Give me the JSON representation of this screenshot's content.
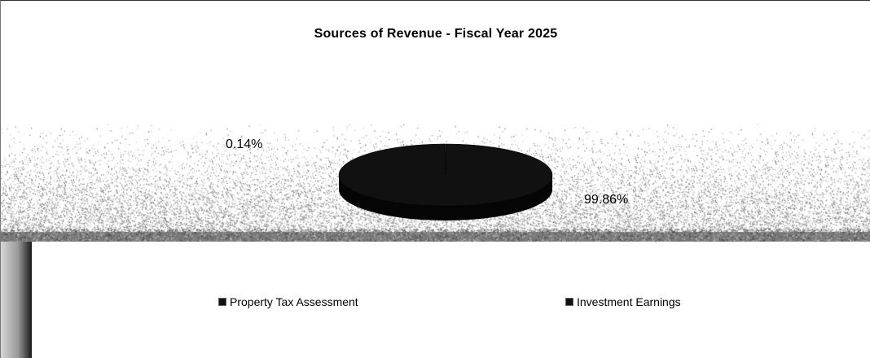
{
  "chart_data": {
    "type": "pie",
    "title": "Sources of Revenue - Fiscal Year 2025",
    "categories": [
      "Property Tax Assessment",
      "Investment Earnings"
    ],
    "values": [
      99.86,
      0.14
    ],
    "labels": [
      "99.86%",
      "0.14%"
    ],
    "colors": [
      "#111111",
      "#3a3a3a"
    ],
    "legend_position": "bottom",
    "style": "3d"
  }
}
